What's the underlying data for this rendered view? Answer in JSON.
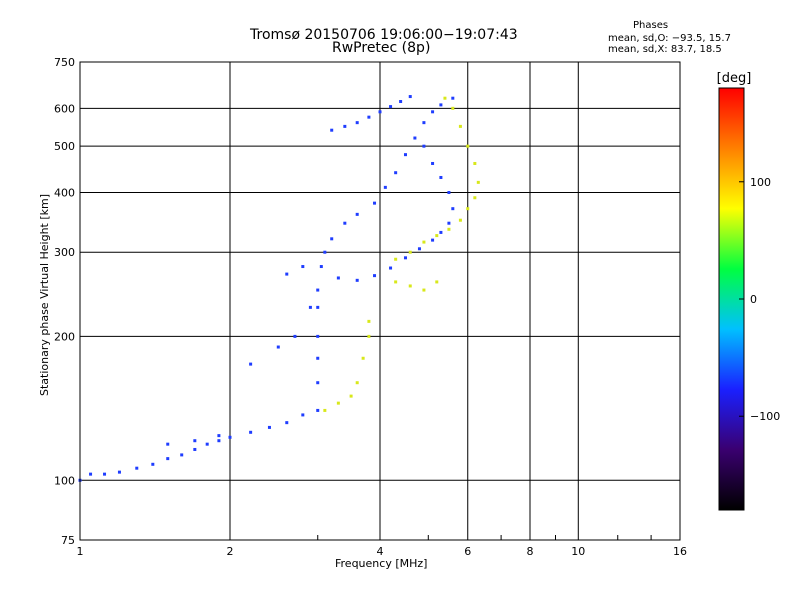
{
  "header": {
    "title_line1": "Tromsø 20150706 19:06:00−19:07:43",
    "title_line2": "RwPretec (8p)",
    "legend_title": "Phases",
    "legend_line1": "mean, sd,O: −93.5, 15.7",
    "legend_line2": "mean, sd,X:  83.7, 18.5"
  },
  "chart_data": {
    "type": "scatter",
    "title": "Tromsø 20150706 19:06:00−19:07:43",
    "subtitle": "RwPretec (8p)",
    "xlabel": "Frequency [MHz]",
    "ylabel": "Stationary phase Virtual Height [km]",
    "x_scale": "log",
    "y_scale": "log",
    "xlim": [
      1,
      16
    ],
    "ylim": [
      75,
      750
    ],
    "grid": true,
    "x_ticks": [
      1,
      2,
      4,
      6,
      8,
      10,
      16
    ],
    "x_tick_labels": [
      "1",
      "2",
      "4",
      "6",
      "8",
      "10",
      "16"
    ],
    "y_ticks": [
      75,
      100,
      200,
      300,
      400,
      500,
      600,
      750
    ],
    "y_tick_labels": [
      "75",
      "100",
      "200",
      "300",
      "400",
      "500",
      "600",
      "750"
    ],
    "colorbar": {
      "label": "[deg]",
      "range": [
        -180,
        180
      ],
      "ticks": [
        100,
        0,
        -100
      ],
      "tick_labels": [
        "100",
        "0",
        "−100"
      ],
      "colors": [
        "#000000",
        "#3a0070",
        "#1a20ff",
        "#00c0ff",
        "#00ff40",
        "#ffff00",
        "#ff8000",
        "#ff0000"
      ]
    },
    "series": [
      {
        "name": "O",
        "phase": -100,
        "color": "#1f3dff",
        "points": [
          [
            1.0,
            100
          ],
          [
            1.05,
            103
          ],
          [
            1.12,
            103
          ],
          [
            1.2,
            104
          ],
          [
            1.3,
            106
          ],
          [
            1.4,
            108
          ],
          [
            1.5,
            111
          ],
          [
            1.6,
            113
          ],
          [
            1.7,
            116
          ],
          [
            1.8,
            119
          ],
          [
            1.9,
            121
          ],
          [
            2.0,
            123
          ],
          [
            2.2,
            126
          ],
          [
            2.4,
            129
          ],
          [
            2.6,
            132
          ],
          [
            2.8,
            137
          ],
          [
            3.0,
            140
          ],
          [
            3.0,
            160
          ],
          [
            3.0,
            180
          ],
          [
            3.0,
            200
          ],
          [
            3.0,
            230
          ],
          [
            3.0,
            250
          ],
          [
            3.05,
            280
          ],
          [
            3.1,
            300
          ],
          [
            3.2,
            320
          ],
          [
            3.4,
            345
          ],
          [
            3.6,
            360
          ],
          [
            3.9,
            380
          ],
          [
            4.1,
            410
          ],
          [
            4.3,
            440
          ],
          [
            4.5,
            480
          ],
          [
            4.7,
            520
          ],
          [
            4.9,
            560
          ],
          [
            5.1,
            590
          ],
          [
            5.3,
            610
          ],
          [
            5.6,
            630
          ],
          [
            3.2,
            540
          ],
          [
            3.4,
            550
          ],
          [
            3.6,
            560
          ],
          [
            3.8,
            575
          ],
          [
            4.0,
            590
          ],
          [
            4.2,
            605
          ],
          [
            4.4,
            620
          ],
          [
            4.6,
            635
          ],
          [
            3.3,
            265
          ],
          [
            3.6,
            262
          ],
          [
            3.9,
            268
          ],
          [
            4.2,
            278
          ],
          [
            4.5,
            292
          ],
          [
            4.8,
            305
          ],
          [
            5.1,
            318
          ],
          [
            5.3,
            330
          ],
          [
            5.5,
            345
          ],
          [
            5.6,
            370
          ],
          [
            5.5,
            400
          ],
          [
            5.3,
            430
          ],
          [
            5.1,
            460
          ],
          [
            4.9,
            500
          ],
          [
            2.2,
            175
          ],
          [
            2.5,
            190
          ],
          [
            2.7,
            200
          ],
          [
            2.9,
            230
          ],
          [
            1.5,
            119
          ],
          [
            1.7,
            121
          ],
          [
            1.9,
            124
          ],
          [
            2.6,
            270
          ],
          [
            2.8,
            280
          ]
        ]
      },
      {
        "name": "X",
        "phase": 90,
        "color": "#d8e81a",
        "points": [
          [
            3.1,
            140
          ],
          [
            3.3,
            145
          ],
          [
            3.5,
            150
          ],
          [
            3.6,
            160
          ],
          [
            3.7,
            180
          ],
          [
            3.8,
            200
          ],
          [
            3.8,
            215
          ],
          [
            4.3,
            290
          ],
          [
            4.6,
            300
          ],
          [
            4.9,
            315
          ],
          [
            5.2,
            325
          ],
          [
            5.5,
            335
          ],
          [
            5.8,
            350
          ],
          [
            6.0,
            370
          ],
          [
            6.2,
            390
          ],
          [
            6.3,
            420
          ],
          [
            6.2,
            460
          ],
          [
            6.0,
            500
          ],
          [
            5.8,
            550
          ],
          [
            5.6,
            600
          ],
          [
            5.4,
            630
          ],
          [
            4.3,
            260
          ],
          [
            4.6,
            255
          ],
          [
            4.9,
            250
          ],
          [
            5.2,
            260
          ]
        ]
      }
    ]
  }
}
